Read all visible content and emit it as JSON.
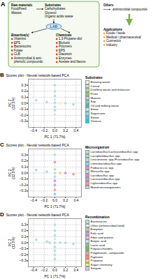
{
  "chart_data": [
    {
      "type": "flowchart",
      "label": "A",
      "color": "#7cb342",
      "nodes": [
        {
          "title": "Raw materials",
          "items": [
            "Food/Feed",
            "Wastes"
          ]
        },
        {
          "title": "Substrates",
          "items": [
            "Carbohydrates",
            "Glycerol",
            "Organic acids waste"
          ]
        },
        {
          "title": "LAB",
          "color": "#1565c0"
        },
        {
          "title": "Bioactive(s)",
          "items": [
            "Vitamins",
            "EPS",
            "Bacteriocins",
            "Folate",
            "CLB",
            "Antimicrobial & anti-\nphenolic compounds"
          ],
          "color": "#e53935"
        },
        {
          "title": "Chemicals",
          "items": [
            "1,3-Propane-diol",
            "Biofuels",
            "Polymers",
            "EPS",
            "Diacetoin",
            "Enzymes",
            "Acetate and flavors"
          ],
          "color": "#e53935"
        },
        {
          "title": "Others",
          "items": [
            "antimicrobial compounds"
          ]
        },
        {
          "title": "Applications",
          "items": [
            "Foods / feeds",
            "Medical / pharmaceutical",
            "Cosmetics",
            "Industry"
          ],
          "color": "#f9a825"
        }
      ]
    },
    {
      "type": "scatter",
      "label": "B",
      "title": "Scores plot - Neural network-based PCA",
      "xlabel": "PC 1 (71.7%)",
      "ylabel": "PC 2\n(12.5%)",
      "xlim": [
        -0.5,
        0.5
      ],
      "ylim": [
        -0.4,
        0.4
      ],
      "xticks": [
        -0.4,
        -0.2,
        {
          "value": 0,
          "label": "0.0"
        },
        0.2,
        0.4
      ],
      "yticks": [
        -0.3,
        -0.2,
        -0.1,
        {
          "value": 0,
          "label": "0.0"
        },
        0.1,
        0.2,
        0.3
      ],
      "x": [
        -0.35,
        -0.15,
        0.0,
        0.0,
        0.0,
        0.0,
        0.0,
        0.0,
        0.0,
        0.0,
        0.0,
        0.2,
        0.35,
        0.1
      ],
      "y": [
        0.05,
        0.02,
        0.3,
        0.2,
        0.12,
        0.06,
        0.01,
        -0.06,
        -0.12,
        -0.19,
        -0.26,
        0.0,
        -0.02,
        0.0
      ],
      "colors": [
        "#b2dfdb",
        "#b2dfdb",
        "#b2dfdb",
        "#b2dfdb",
        "#b2dfdb",
        "#cfe8e6",
        "#b2dfdb",
        "#b2dfdb",
        "#b2dfdb",
        "#cce5e3",
        "#e0f2f1",
        "#b2dfdb",
        "#b2dfdb",
        "#ffecb3"
      ],
      "marker": "circle",
      "grid": true,
      "legend": "right",
      "legend_title": "Substrates",
      "legend_items": [
        {
          "label": "Brewing waste",
          "color": "#e8f5e9"
        },
        {
          "label": "Cereal",
          "color": "#c8e6c9"
        },
        {
          "label": "Distillery waste and molasses",
          "color": "#a5d6a7"
        },
        {
          "label": "Fruits",
          "color": "#81c784"
        },
        {
          "label": "Manure",
          "color": "#b2dfdb"
        },
        {
          "label": "Soy",
          "color": "#80cbc4"
        },
        {
          "label": "Oil and milking waste",
          "color": "#4db6ac"
        },
        {
          "label": "Straw",
          "color": "#b2ebf2"
        },
        {
          "label": "Sugarcane",
          "color": "#80deea"
        },
        {
          "label": "Stover",
          "color": "#4dd0e1"
        },
        {
          "label": "Vinasse",
          "color": "#26c6da"
        }
      ]
    },
    {
      "type": "scatter",
      "label": "C",
      "title": "Scores plot - Neural network-based PCA",
      "xlabel": "PC 1 (71.7%)",
      "ylabel": "PC 2\n(12.5%)",
      "xlim": [
        -0.5,
        0.5
      ],
      "ylim": [
        -0.4,
        0.4
      ],
      "xticks": [
        -0.4,
        -0.2,
        {
          "value": 0,
          "label": "0.0"
        },
        0.2,
        0.4
      ],
      "yticks": [
        -0.3,
        -0.2,
        -0.1,
        {
          "value": 0,
          "label": "0.0"
        },
        0.1,
        0.2,
        0.3
      ],
      "x": [
        -0.35,
        -0.15,
        0.0,
        0.0,
        0.0,
        0.0,
        0.0,
        0.0,
        0.0,
        0.0,
        0.0,
        0.2,
        0.35,
        0.1
      ],
      "y": [
        0.05,
        0.02,
        0.3,
        0.18,
        0.06,
        0.0,
        -0.06,
        -0.13,
        -0.2,
        -0.28,
        -0.35,
        0.0,
        -0.02,
        0.0
      ],
      "colors": [
        "#b2dfdb",
        "#b2dfdb",
        "#b2dfdb",
        "#f48fb1",
        "#b2dfdb",
        "#b2dfdb",
        "#b2dfdb",
        "#ce93d8",
        "#b39ddb",
        "#ef9a9a",
        "#90caf9",
        "#ce93d8",
        "#ef9a9a",
        "#ffcc80"
      ],
      "markers": [
        "circle",
        "circle",
        "square",
        "circle",
        "circle",
        "circle",
        "circle",
        "circle",
        "triangle",
        "triangle",
        "square",
        "triangle",
        "circle",
        "circle"
      ],
      "grid": true,
      "legend": "right",
      "legend_title": "Microorganism",
      "legend_items": [
        {
          "label": "Lactobacillus/Lacticaseibacillus spp.",
          "color": "#b2dfdb"
        },
        {
          "label": "Lactiplantibacillus spp.",
          "color": "#b2dfdb"
        },
        {
          "label": "Leuconostoc spp./Fructobacillus spp.",
          "color": "#b2dfdb"
        },
        {
          "label": "Limosilactobacillus spp.",
          "color": "#90caf9"
        },
        {
          "label": "Pediococcus spp.",
          "color": "#f48fb1"
        },
        {
          "label": "Weissella spp.",
          "color": "#b2dfdb"
        },
        {
          "label": "Lactobacillus spp.",
          "color": "#ce93d8"
        },
        {
          "label": "Lacticaseibacillus spp.",
          "color": "#b39ddb"
        },
        {
          "label": "Ligilactobacillus spp.",
          "color": "#ef9a9a"
        },
        {
          "label": "Mixed microorganisms",
          "color": "#b2dfdb"
        }
      ]
    },
    {
      "type": "scatter",
      "label": "D",
      "title": "Scores plot - Neural network-based PCA",
      "xlabel": "PC 1 (71.7%)",
      "ylabel": "PC 2\n(12.5%)",
      "xlim": [
        -0.5,
        0.5
      ],
      "ylim": [
        -0.4,
        0.4
      ],
      "xticks": [
        -0.4,
        -0.2,
        {
          "value": 0,
          "label": "0.0"
        },
        0.2,
        0.4
      ],
      "yticks": [
        -0.3,
        -0.2,
        -0.1,
        {
          "value": 0,
          "label": "0.0"
        },
        0.1,
        0.2,
        0.3
      ],
      "x": [
        -0.35,
        -0.15,
        0.0,
        0.0,
        0.0,
        0.0,
        0.0,
        0.0,
        0.0,
        0.0,
        0.0,
        0.2,
        0.35,
        0.1,
        -0.1
      ],
      "y": [
        0.05,
        0.02,
        0.3,
        0.2,
        0.12,
        0.06,
        0.0,
        -0.07,
        -0.13,
        -0.2,
        -0.27,
        0.0,
        -0.02,
        0.0,
        0.0
      ],
      "colors": [
        "#b2dfdb",
        "#b2dfdb",
        "#b2dfdb",
        "#b2dfdb",
        "#b2dfdb",
        "#cfe8e6",
        "#b2dfdb",
        "#b2dfdb",
        "#b2dfdb",
        "#b2dfdb",
        "#b2dfdb",
        "#b2dfdb",
        "#b2dfdb",
        "#b2dfdb",
        "#b2dfdb"
      ],
      "marker": "circle",
      "grid": true,
      "legend": "right",
      "legend_title": "Recombination",
      "legend_items": [
        {
          "label": "Bacteriocins",
          "color": "#b2dfdb"
        },
        {
          "label": "Other (antimicrobial food)",
          "color": "#e0f7fa"
        },
        {
          "label": "Enzymes",
          "color": "#a5d6a7"
        },
        {
          "label": "Folic acid",
          "color": "#ce93d8"
        },
        {
          "label": "Fiber and protein",
          "color": "#f8bbd9"
        },
        {
          "label": "Butyric acid",
          "color": "#b2ebf2"
        },
        {
          "label": "Lactic acid",
          "color": "#81c784"
        },
        {
          "label": "Polysaccharides",
          "color": "#66bb6a"
        },
        {
          "label": "Polyphenols, compounds",
          "color": "#ef9a9a"
        },
        {
          "label": "Pigments",
          "color": "#ff8a65"
        },
        {
          "label": "Propionic",
          "color": "#ffcc80"
        },
        {
          "label": "Sugar chemistry",
          "color": "#fff176"
        },
        {
          "label": "Sorgum",
          "color": "#e1bee7"
        }
      ]
    }
  ]
}
